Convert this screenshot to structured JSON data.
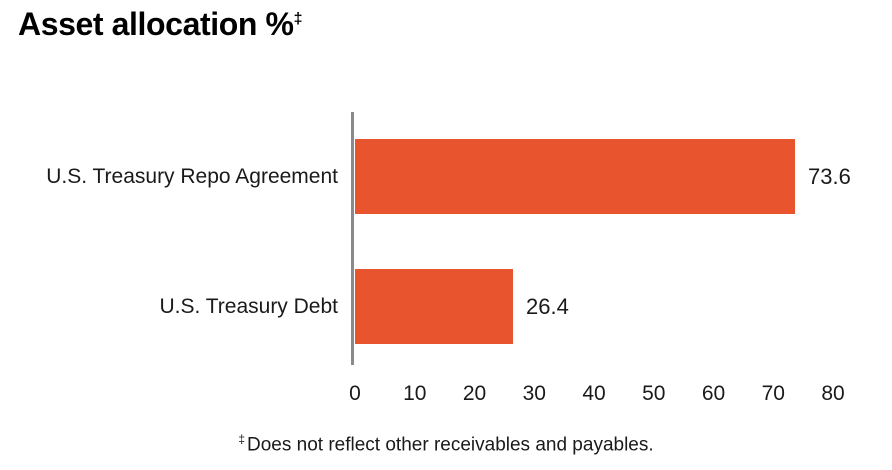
{
  "title": {
    "text": "Asset allocation %",
    "superscript": "‡"
  },
  "footnote": {
    "marker": "‡",
    "text": "Does not reflect other receivables and payables."
  },
  "chart_data": {
    "type": "bar",
    "orientation": "horizontal",
    "title": "Asset allocation %‡",
    "categories": [
      "U.S. Treasury Repo Agreement",
      "U.S. Treasury Debt"
    ],
    "values": [
      73.6,
      26.4
    ],
    "value_labels": [
      "73.6",
      "26.4"
    ],
    "xlim": [
      0,
      80
    ],
    "x_ticks": [
      "0",
      "10",
      "20",
      "30",
      "40",
      "50",
      "60",
      "70",
      "80"
    ],
    "grid": false,
    "legend": "none",
    "bar_color": "#E8542E",
    "axis_color": "#8A8A8D",
    "text_color": "#1a1a1a",
    "footnote": "‡ Does not reflect other receivables and payables."
  }
}
